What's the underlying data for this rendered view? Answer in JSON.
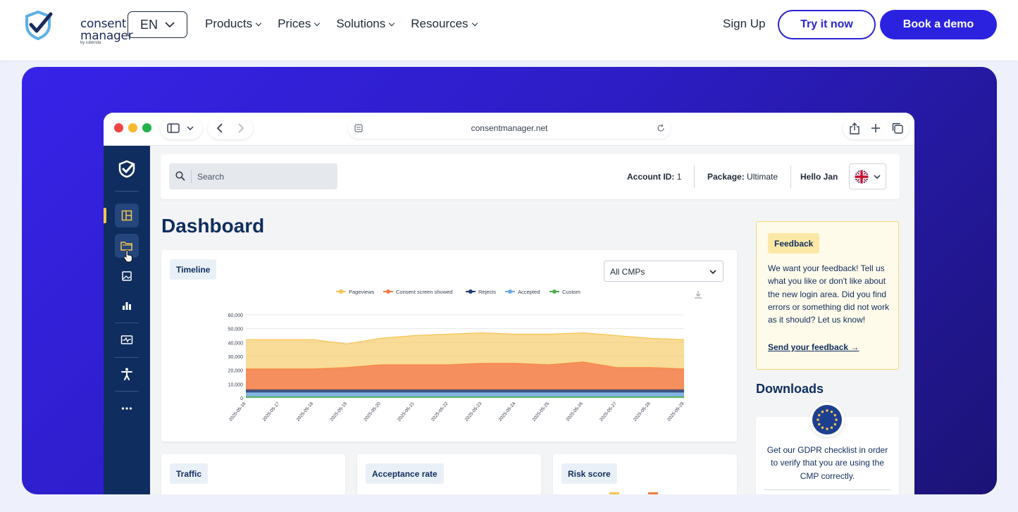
{
  "header": {
    "logo_text_line1": "consent",
    "logo_text_line2": "manager",
    "logo_sub": "by iubenda",
    "language": "EN",
    "nav": [
      {
        "label": "Products"
      },
      {
        "label": "Prices"
      },
      {
        "label": "Solutions"
      },
      {
        "label": "Resources"
      }
    ],
    "sign_up": "Sign Up",
    "try_now": "Try it now",
    "book_demo": "Book a demo"
  },
  "colors": {
    "brand_blue": "#2b22e0",
    "navy": "#0f2d5e",
    "pageviews": "#f5c451",
    "consent_screen": "#f47b42",
    "rejects": "#1e3a6e",
    "accepted": "#6fa8dc",
    "custom": "#4caf50"
  },
  "browser": {
    "url": "consentmanager.net"
  },
  "app": {
    "sidebar_icons": [
      "dashboard-icon",
      "folder-icon",
      "image-icon",
      "bar-chart-icon",
      "monitor-icon",
      "accessibility-icon",
      "more-icon"
    ],
    "search_placeholder": "Search",
    "account_label": "Account ID:",
    "account_value": "1",
    "package_label": "Package:",
    "package_value": "Ultimate",
    "greeting": "Hello Jan",
    "page_title": "Dashboard",
    "timeline": {
      "label": "Timeline",
      "select_value": "All CMPs"
    },
    "cards": [
      {
        "label": "Traffic"
      },
      {
        "label": "Acceptance rate"
      },
      {
        "label": "Risk score"
      }
    ],
    "feedback": {
      "label": "Feedback",
      "text": "We want your feedback! Tell us what you like or don't like about the new login area. Did you find errors or something did not work as it should? Let us know!",
      "link": "Send your feedback →"
    },
    "downloads": {
      "title": "Downloads",
      "text": "Get our GDPR checklist in order to verify that you are using the CMP correctly."
    }
  },
  "chart_data": {
    "type": "area",
    "stacked": true,
    "x": [
      "2025-05-16",
      "2025-05-17",
      "2025-05-18",
      "2025-05-19",
      "2025-05-20",
      "2025-05-21",
      "2025-05-22",
      "2025-05-23",
      "2025-05-24",
      "2025-05-25",
      "2025-05-26",
      "2025-05-27",
      "2025-05-28",
      "2025-05-29"
    ],
    "series": [
      {
        "name": "Pageviews",
        "values": [
          21000,
          21000,
          21000,
          17000,
          19000,
          21000,
          22000,
          22000,
          21000,
          22000,
          21000,
          23000,
          21000,
          21000
        ]
      },
      {
        "name": "Consent screen showed",
        "values": [
          15000,
          15000,
          15000,
          16000,
          18000,
          18000,
          18000,
          19000,
          19000,
          18000,
          20000,
          16000,
          16000,
          15000
        ]
      },
      {
        "name": "Rejects",
        "values": [
          2000,
          2000,
          2000,
          2000,
          2000,
          2000,
          2000,
          2000,
          2000,
          2000,
          2000,
          2000,
          2000,
          2000
        ]
      },
      {
        "name": "Accepted",
        "values": [
          3000,
          3000,
          3000,
          3000,
          3000,
          3000,
          3000,
          3000,
          3000,
          3000,
          3000,
          3000,
          3000,
          3000
        ]
      },
      {
        "name": "Custom",
        "values": [
          1000,
          1000,
          1000,
          1000,
          1000,
          1000,
          1000,
          1000,
          1000,
          1000,
          1000,
          1000,
          1000,
          1000
        ]
      }
    ],
    "ylim": [
      0,
      60000
    ],
    "yticks": [
      "0",
      "10,000",
      "20,000",
      "30,000",
      "40,000",
      "50,000",
      "60,000"
    ],
    "legend": "top",
    "grid": true
  }
}
